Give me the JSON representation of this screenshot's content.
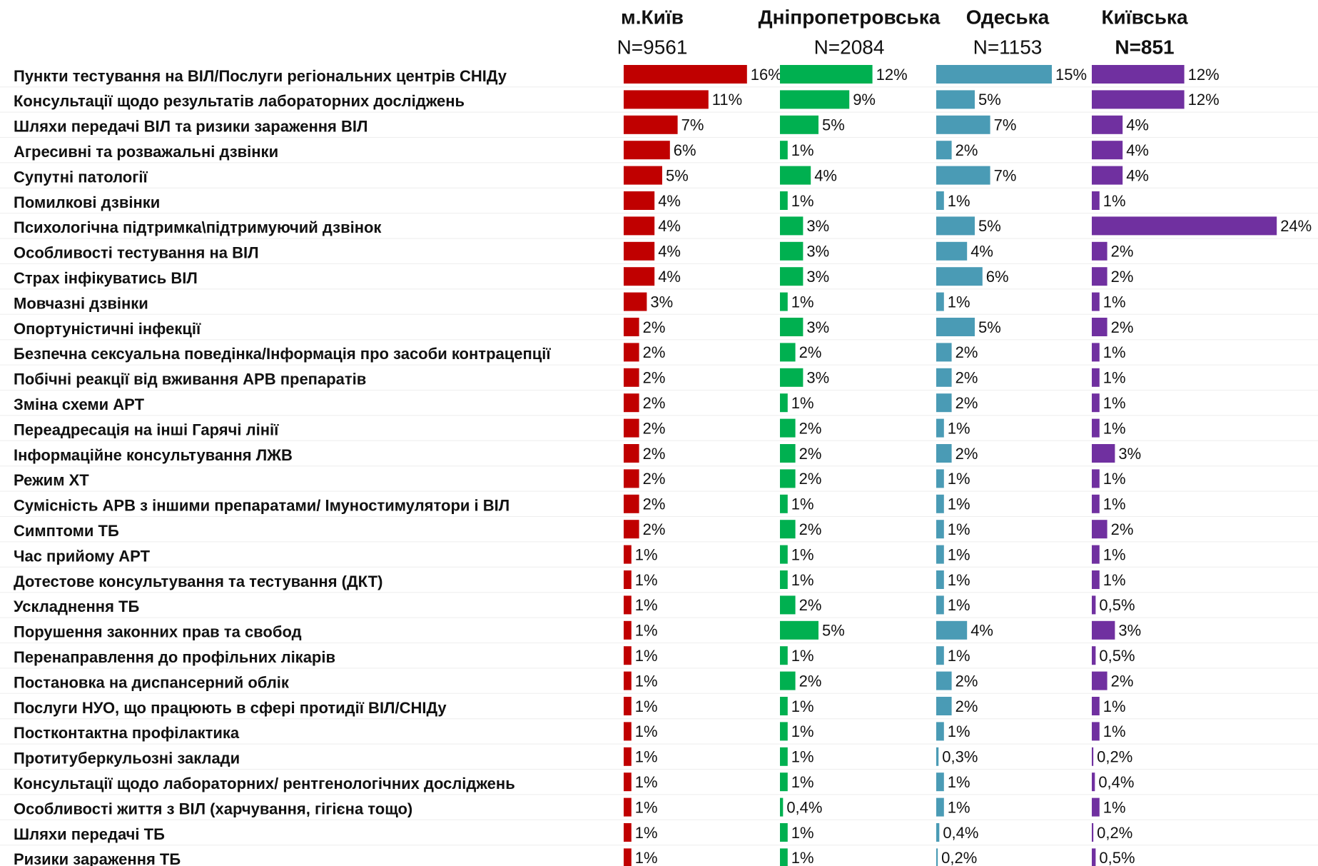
{
  "chart_data": {
    "type": "bar",
    "categories": [
      "Пункти тестування на ВІЛ/Послуги регіональних центрів СНІДу",
      "Консультації щодо результатів лабораторних досліджень",
      "Шляхи передачі ВІЛ та ризики зараження ВІЛ",
      "Агресивні та розважальні дзвінки",
      "Супутні патології",
      "Помилкові дзвінки",
      "Психологічна підтримка\\підтримуючий дзвінок",
      "Особливості тестування на ВІЛ",
      "Страх інфікуватись ВІЛ",
      "Мовчазні дзвінки",
      "Опортуністичні інфекції",
      "Безпечна сексуальна поведінка/Інформація про засоби контрацепції",
      "Побічні реакції від вживання АРВ препаратів",
      "Зміна схеми АРТ",
      "Переадресація на інші Гарячі лінії",
      "Інформаційне консультування ЛЖВ",
      "Режим ХТ",
      "Сумісність АРВ з іншими препаратами/ Імуностимулятори і ВІЛ",
      "Симптоми ТБ",
      "Час прийому АРТ",
      "Дотестове консультування та тестування (ДКТ)",
      "Ускладнення ТБ",
      "Порушення законних прав та свобод",
      "Перенаправлення до профільних лікарів",
      "Постановка на диспансерний облік",
      "Послуги НУО, що працюють в сфері протидії ВІЛ/СНІДу",
      "Постконтактна профілактика",
      "Протитуберкульозні заклади",
      "Консультації щодо лабораторних/ рентгенологічних досліджень",
      "Особливості життя з ВІЛ (харчування, гігієна тощо)",
      "Шляхи передачі ТБ",
      "Ризики зараження ТБ"
    ],
    "series": [
      {
        "name": "м.Київ",
        "n_label": "N=9561",
        "color": "#c00000",
        "values": [
          16,
          11,
          7,
          6,
          5,
          4,
          4,
          4,
          4,
          3,
          2,
          2,
          2,
          2,
          2,
          2,
          2,
          2,
          2,
          1,
          1,
          1,
          1,
          1,
          1,
          1,
          1,
          1,
          1,
          1,
          1,
          1
        ],
        "value_labels": [
          "16%",
          "11%",
          "7%",
          "6%",
          "5%",
          "4%",
          "4%",
          "4%",
          "4%",
          "3%",
          "2%",
          "2%",
          "2%",
          "2%",
          "2%",
          "2%",
          "2%",
          "2%",
          "2%",
          "1%",
          "1%",
          "1%",
          "1%",
          "1%",
          "1%",
          "1%",
          "1%",
          "1%",
          "1%",
          "1%",
          "1%",
          "1%"
        ]
      },
      {
        "name": "Дніпропетровська",
        "n_label": "N=2084",
        "color": "#00b050",
        "values": [
          12,
          9,
          5,
          1,
          4,
          1,
          3,
          3,
          3,
          1,
          3,
          2,
          3,
          1,
          2,
          2,
          2,
          1,
          2,
          1,
          1,
          2,
          5,
          1,
          2,
          1,
          1,
          1,
          1,
          0.4,
          1,
          1
        ],
        "value_labels": [
          "12%",
          "9%",
          "5%",
          "1%",
          "4%",
          "1%",
          "3%",
          "3%",
          "3%",
          "1%",
          "3%",
          "2%",
          "3%",
          "1%",
          "2%",
          "2%",
          "2%",
          "1%",
          "2%",
          "1%",
          "1%",
          "2%",
          "5%",
          "1%",
          "2%",
          "1%",
          "1%",
          "1%",
          "1%",
          "0,4%",
          "1%",
          "1%"
        ]
      },
      {
        "name": "Одеська",
        "n_label": "N=1153",
        "color": "#4a9bb5",
        "values": [
          15,
          5,
          7,
          2,
          7,
          1,
          5,
          4,
          6,
          1,
          5,
          2,
          2,
          2,
          1,
          2,
          1,
          1,
          1,
          1,
          1,
          1,
          4,
          1,
          2,
          2,
          1,
          0.3,
          1,
          1,
          0.4,
          0.2
        ],
        "value_labels": [
          "15%",
          "5%",
          "7%",
          "2%",
          "7%",
          "1%",
          "5%",
          "4%",
          "6%",
          "1%",
          "5%",
          "2%",
          "2%",
          "2%",
          "1%",
          "2%",
          "1%",
          "1%",
          "1%",
          "1%",
          "1%",
          "1%",
          "4%",
          "1%",
          "2%",
          "2%",
          "1%",
          "0,3%",
          "1%",
          "1%",
          "0,4%",
          "0,2%"
        ]
      },
      {
        "name": "Київська",
        "n_label": "N=851",
        "color": "#7030a0",
        "values": [
          12,
          12,
          4,
          4,
          4,
          1,
          24,
          2,
          2,
          1,
          2,
          1,
          1,
          1,
          1,
          3,
          1,
          1,
          2,
          1,
          1,
          0.5,
          3,
          0.5,
          2,
          1,
          1,
          0.2,
          0.4,
          1,
          0.2,
          0.5
        ],
        "value_labels": [
          "12%",
          "12%",
          "4%",
          "4%",
          "4%",
          "1%",
          "24%",
          "2%",
          "2%",
          "1%",
          "2%",
          "1%",
          "1%",
          "1%",
          "1%",
          "3%",
          "1%",
          "1%",
          "2%",
          "1%",
          "1%",
          "0,5%",
          "3%",
          "0,5%",
          "2%",
          "1%",
          "1%",
          "0,2%",
          "0,4%",
          "1%",
          "0,2%",
          "0,5%"
        ]
      }
    ]
  }
}
